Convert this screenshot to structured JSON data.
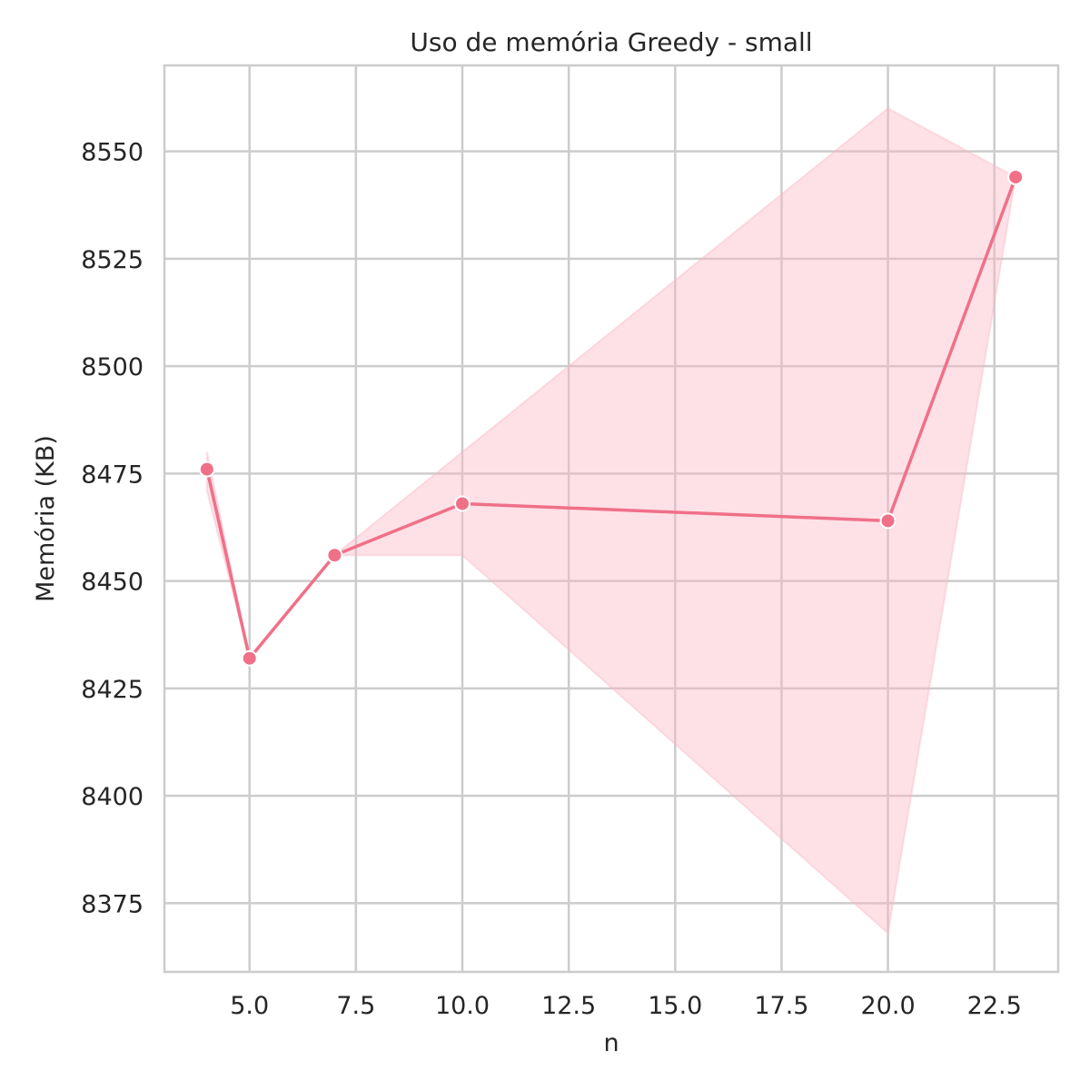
{
  "chart_data": {
    "type": "line",
    "title": "Uso de memória Greedy - small",
    "xlabel": "n",
    "ylabel": "Memória (KB)",
    "xlim": [
      3.0,
      24.0
    ],
    "ylim": [
      8359,
      8570
    ],
    "x_ticks": [
      5.0,
      7.5,
      10.0,
      12.5,
      15.0,
      17.5,
      20.0,
      22.5
    ],
    "x_tick_labels": [
      "5.0",
      "7.5",
      "10.0",
      "12.5",
      "15.0",
      "17.5",
      "20.0",
      "22.5"
    ],
    "y_ticks": [
      8375,
      8400,
      8425,
      8450,
      8475,
      8500,
      8525,
      8550
    ],
    "y_tick_labels": [
      "8375",
      "8400",
      "8425",
      "8450",
      "8475",
      "8500",
      "8525",
      "8550"
    ],
    "grid": true,
    "legend": "none",
    "series": [
      {
        "color": "#f07088",
        "band_color": "#fbb8c6",
        "points": [
          {
            "x": 4,
            "y": 8476,
            "ci": [
              8471,
              8480
            ]
          },
          {
            "x": 5,
            "y": 8432,
            "ci": [
              8432,
              8432
            ]
          },
          {
            "x": 7,
            "y": 8456,
            "ci": [
              8456,
              8456
            ]
          },
          {
            "x": 10,
            "y": 8468,
            "ci": [
              8456,
              8480
            ]
          },
          {
            "x": 20,
            "y": 8464,
            "ci": [
              8368,
              8560
            ]
          },
          {
            "x": 23,
            "y": 8544,
            "ci": [
              8544,
              8544
            ]
          }
        ]
      }
    ]
  }
}
